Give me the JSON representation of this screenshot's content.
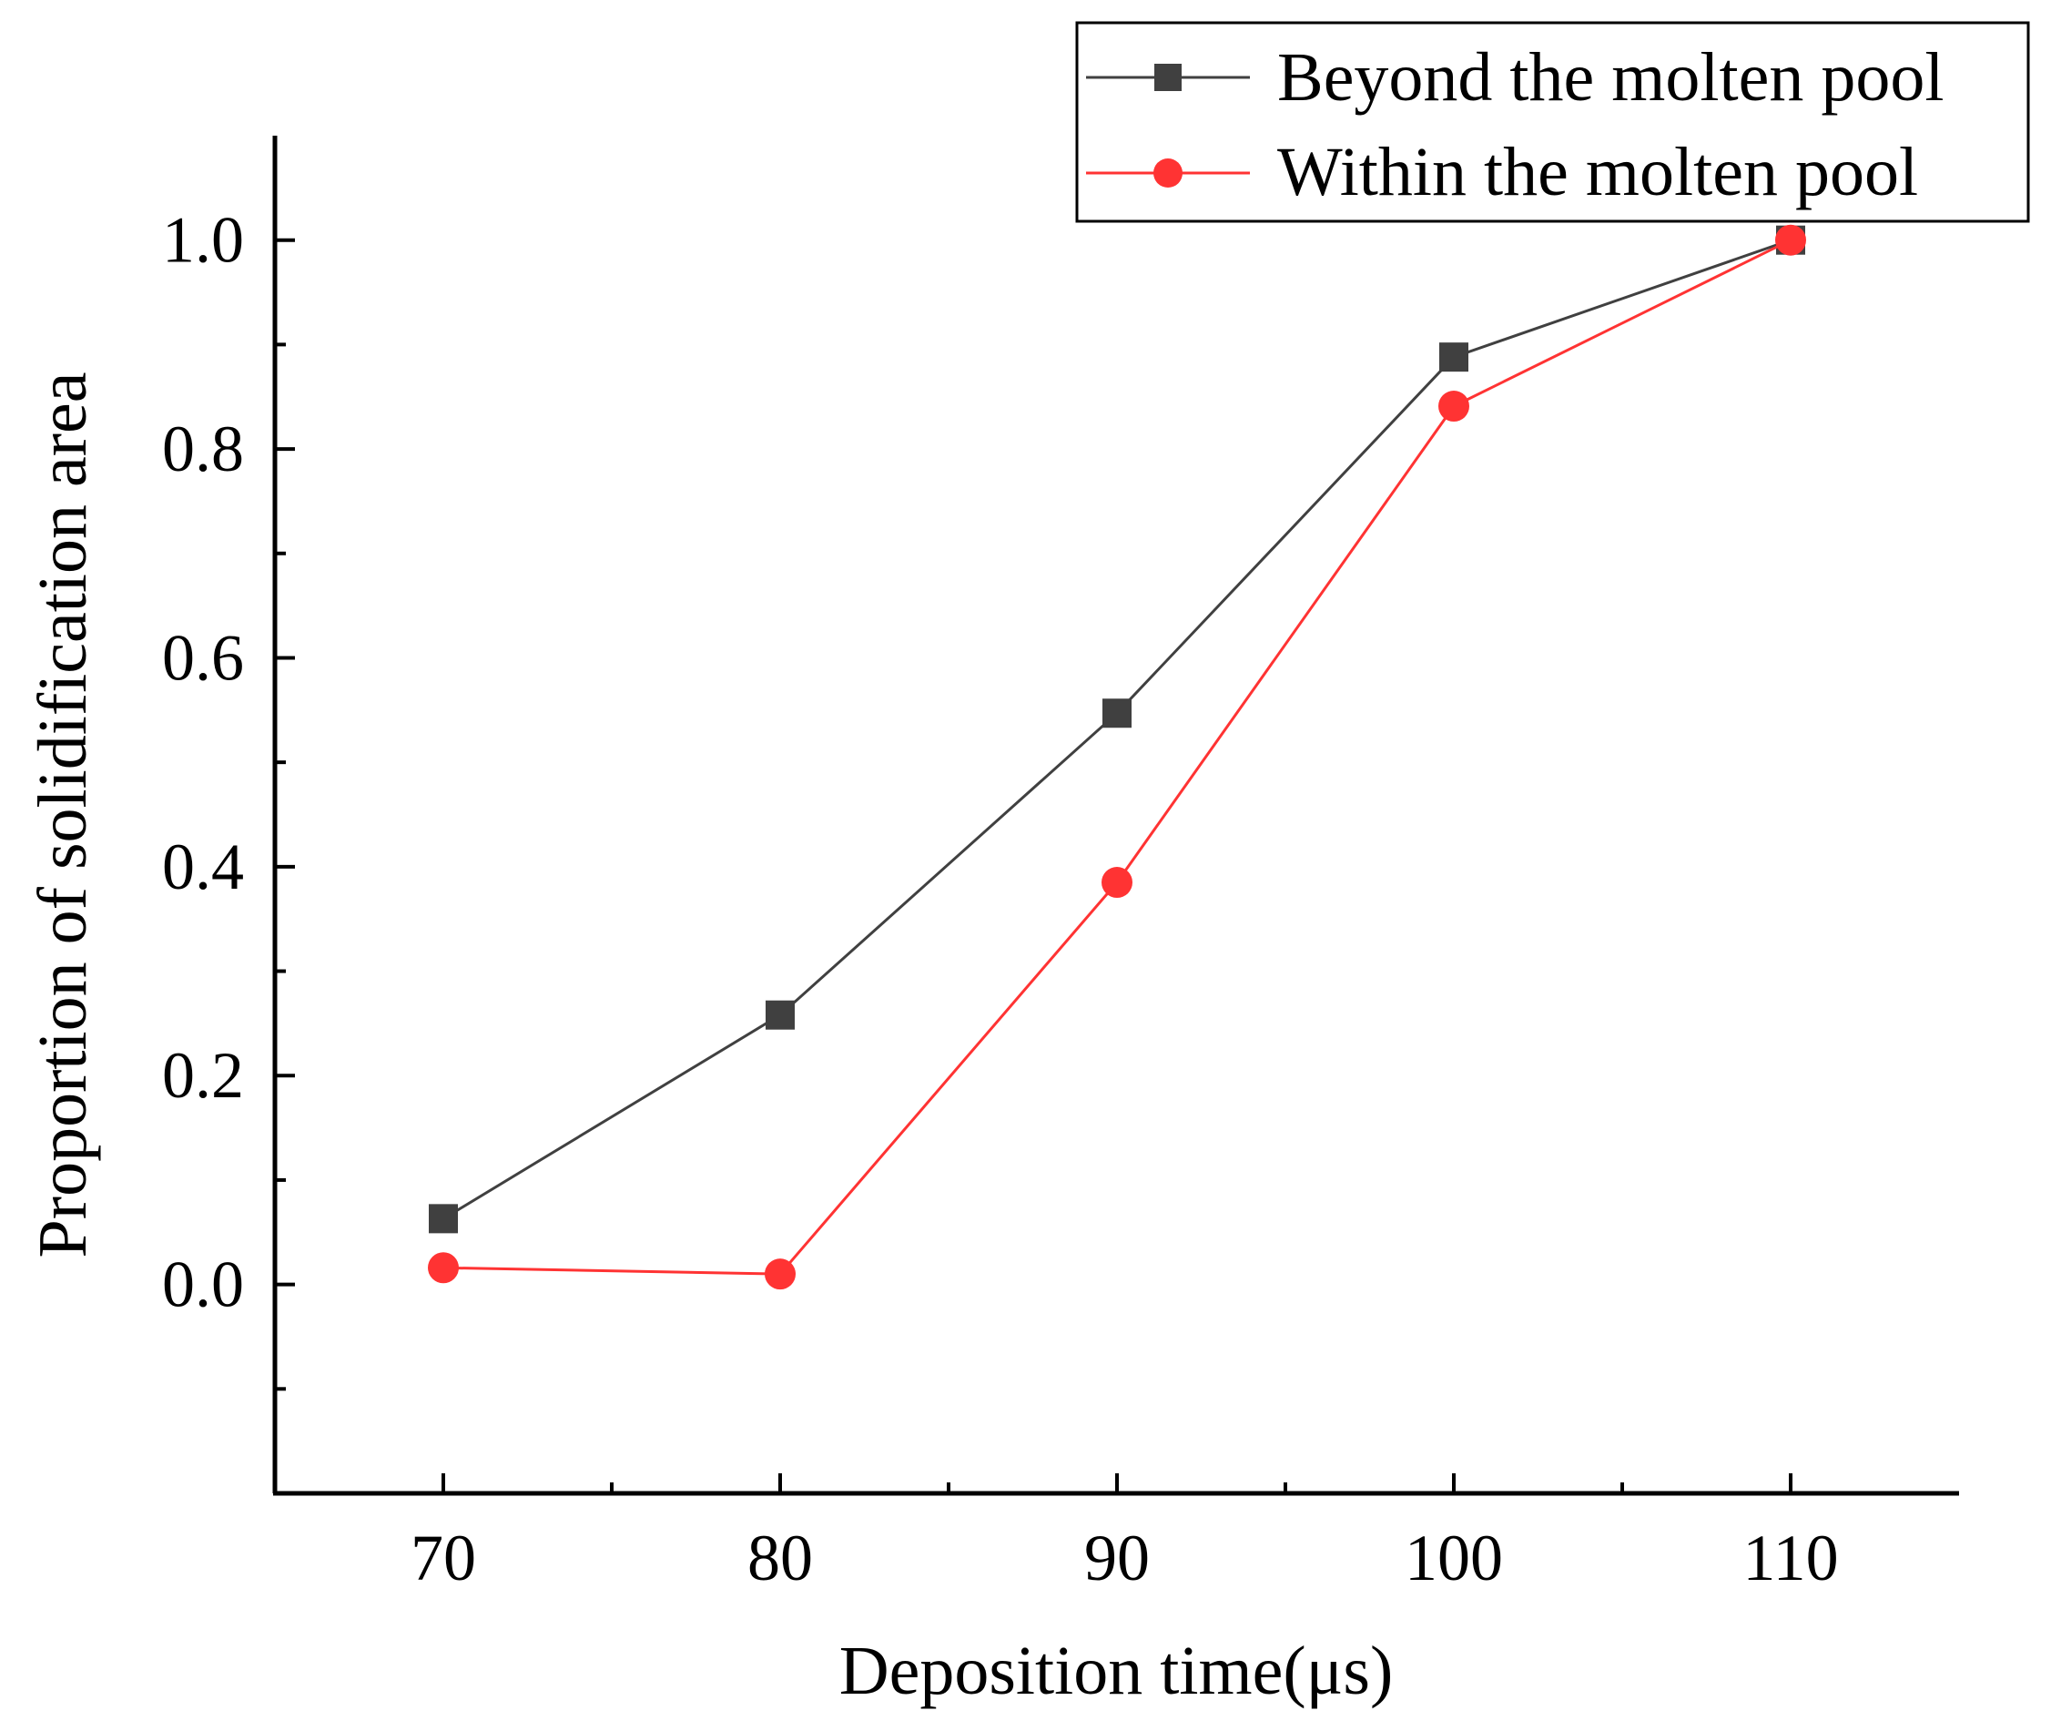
{
  "chart_data": {
    "type": "line",
    "xlabel": "Deposition time(μs)",
    "ylabel": "Proportion of solidification area",
    "xlim": [
      65,
      115
    ],
    "ylim": [
      -0.2,
      1.1
    ],
    "x_ticks": [
      70,
      80,
      90,
      100,
      110
    ],
    "x_tick_labels": [
      "70",
      "80",
      "90",
      "100",
      "110"
    ],
    "x_minor_ticks": [
      75,
      85,
      95,
      105
    ],
    "y_ticks": [
      0.0,
      0.2,
      0.4,
      0.6,
      0.8,
      1.0
    ],
    "y_tick_labels": [
      "0.0",
      "0.2",
      "0.4",
      "0.6",
      "0.8",
      "1.0"
    ],
    "y_minor_ticks": [
      -0.1,
      0.1,
      0.3,
      0.5,
      0.7,
      0.9
    ],
    "grid": false,
    "legend_position": "top-right",
    "x": [
      70,
      80,
      90,
      100,
      110
    ],
    "series": [
      {
        "name": "Beyond the molten pool",
        "color": "#404040",
        "marker": "square",
        "values": [
          0.063,
          0.258,
          0.547,
          0.888,
          1.0
        ]
      },
      {
        "name": "Within the molten pool",
        "color": "#ff3333",
        "marker": "circle",
        "values": [
          0.016,
          0.01,
          0.385,
          0.841,
          1.0
        ]
      }
    ]
  }
}
